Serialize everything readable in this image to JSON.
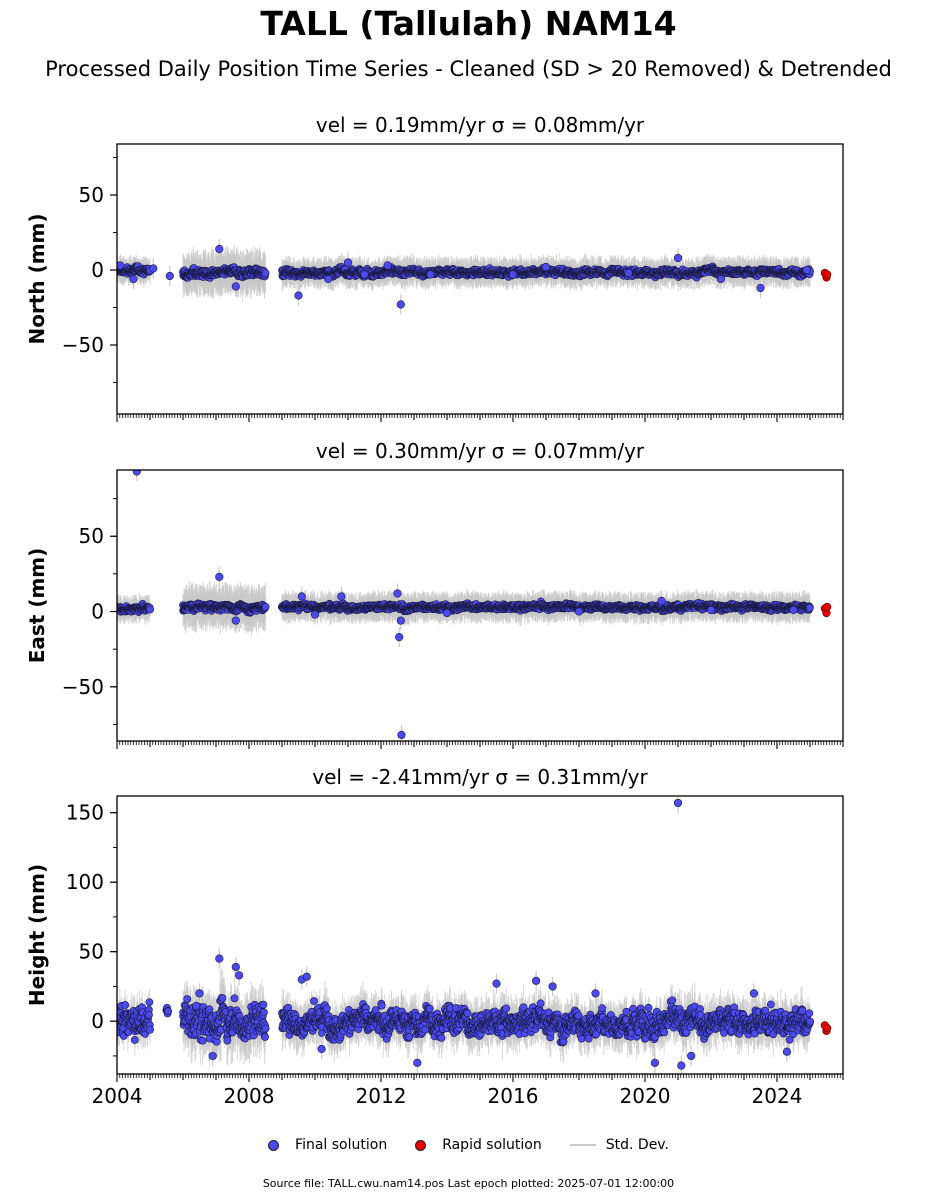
{
  "page": {
    "title": "TALL (Tallulah) NAM14",
    "subtitle": "Processed Daily Position Time Series - Cleaned (SD > 20 Removed) & Detrended",
    "source_note": "Source file: TALL.cwu.nam14.pos  Last epoch plotted: 2025-07-01 12:00:00"
  },
  "legend": {
    "final_label": "Final solution",
    "rapid_label": "Rapid solution",
    "std_label": "Std. Dev."
  },
  "colors": {
    "final": "#4a4aef",
    "final_edge": "#1a1a40",
    "rapid": "#e60000",
    "std": "#c8c8c8"
  },
  "chart_data": [
    {
      "type": "scatter",
      "title": "vel = 0.19mm/yr   σ = 0.08mm/yr",
      "ylabel": "North (mm)",
      "xlim": [
        2004.0,
        2026.0
      ],
      "ylim": [
        -96,
        84
      ],
      "yticks": [
        50,
        0,
        -50
      ],
      "ytick_labels": [
        "50",
        "0",
        "−50"
      ],
      "series": [
        {
          "name": "Final solution",
          "segments": [
            [
              2004.0,
              2005.0,
              2.5,
              0,
              1.2
            ],
            [
              2006.0,
              2008.5,
              3,
              -2,
              2.0
            ],
            [
              2009.0,
              2025.0,
              2.3,
              -1.5,
              1.3
            ]
          ],
          "points": [
            [
              2004.1,
              3
            ],
            [
              2004.5,
              -6
            ],
            [
              2005.1,
              1
            ],
            [
              2005.6,
              -4
            ],
            [
              2007.1,
              14
            ],
            [
              2007.6,
              -11
            ],
            [
              2009.5,
              -17
            ],
            [
              2010.4,
              -6
            ],
            [
              2011.0,
              5
            ],
            [
              2011.5,
              -3
            ],
            [
              2012.6,
              -23
            ],
            [
              2012.2,
              3
            ],
            [
              2013.5,
              -3
            ],
            [
              2016.0,
              -3
            ],
            [
              2017.0,
              2
            ],
            [
              2019.5,
              -2
            ],
            [
              2021.0,
              8
            ],
            [
              2022.3,
              -6
            ],
            [
              2023.5,
              -12
            ],
            [
              2024.9,
              0
            ]
          ]
        },
        {
          "name": "Rapid solution",
          "points": [
            [
              2025.45,
              -2
            ],
            [
              2025.5,
              -5
            ],
            [
              2025.52,
              -3
            ]
          ]
        }
      ]
    },
    {
      "type": "scatter",
      "title": "vel = 0.30mm/yr   σ = 0.07mm/yr",
      "ylabel": "East (mm)",
      "xlim": [
        2004.0,
        2026.0
      ],
      "ylim": [
        -86,
        94
      ],
      "yticks": [
        50,
        0,
        -50
      ],
      "ytick_labels": [
        "50",
        "0",
        "−50"
      ],
      "series": [
        {
          "name": "Final solution",
          "segments": [
            [
              2004.0,
              2005.0,
              2.2,
              2,
              1.2
            ],
            [
              2006.0,
              2008.5,
              2.5,
              3,
              2.0
            ],
            [
              2009.0,
              2025.0,
              2.0,
              3,
              1.3
            ]
          ],
          "points": [
            [
              2004.6,
              93
            ],
            [
              2007.1,
              23
            ],
            [
              2007.6,
              -6
            ],
            [
              2009.6,
              10
            ],
            [
              2010.0,
              -2
            ],
            [
              2010.8,
              10
            ],
            [
              2012.5,
              12
            ],
            [
              2012.55,
              -17
            ],
            [
              2012.6,
              -6
            ],
            [
              2012.62,
              -82
            ],
            [
              2014.0,
              -1
            ],
            [
              2018.0,
              0
            ],
            [
              2020.5,
              7
            ],
            [
              2022.0,
              1
            ],
            [
              2024.5,
              1
            ]
          ]
        },
        {
          "name": "Rapid solution",
          "points": [
            [
              2025.45,
              2
            ],
            [
              2025.5,
              -1
            ],
            [
              2025.52,
              3
            ]
          ]
        }
      ]
    },
    {
      "type": "scatter",
      "title": "vel = -2.41mm/yr   σ = 0.31mm/yr",
      "ylabel": "Height (mm)",
      "xlim": [
        2004.0,
        2026.0
      ],
      "ylim": [
        -38,
        162
      ],
      "yticks": [
        150,
        100,
        50,
        0
      ],
      "ytick_labels": [
        "150",
        "100",
        "50",
        "0"
      ],
      "xticks": [
        2004,
        2008,
        2012,
        2016,
        2020,
        2024
      ],
      "xtick_labels": [
        "2004",
        "2008",
        "2012",
        "2016",
        "2020",
        "2024"
      ],
      "series": [
        {
          "name": "Final solution",
          "segments": [
            [
              2004.0,
              2005.0,
              12,
              0,
              1.0
            ],
            [
              2005.5,
              2005.55,
              4,
              8,
              0.15
            ],
            [
              2006.0,
              2008.5,
              13,
              0,
              1.6
            ],
            [
              2009.0,
              2025.0,
              10,
              0,
              1.2
            ]
          ],
          "points": [
            [
              2006.4,
              11
            ],
            [
              2006.5,
              20
            ],
            [
              2007.1,
              45
            ],
            [
              2007.6,
              39
            ],
            [
              2007.7,
              33
            ],
            [
              2006.9,
              -25
            ],
            [
              2009.6,
              30
            ],
            [
              2009.75,
              32
            ],
            [
              2010.2,
              -20
            ],
            [
              2013.1,
              -30
            ],
            [
              2015.5,
              27
            ],
            [
              2016.7,
              29
            ],
            [
              2017.2,
              25
            ],
            [
              2018.5,
              20
            ],
            [
              2020.3,
              -30
            ],
            [
              2021.0,
              157
            ],
            [
              2021.1,
              -32
            ],
            [
              2021.4,
              -25
            ],
            [
              2023.3,
              20
            ],
            [
              2024.3,
              -22
            ]
          ]
        },
        {
          "name": "Rapid solution",
          "points": [
            [
              2025.45,
              -3
            ],
            [
              2025.5,
              -7
            ],
            [
              2025.52,
              -5
            ]
          ]
        }
      ]
    }
  ]
}
